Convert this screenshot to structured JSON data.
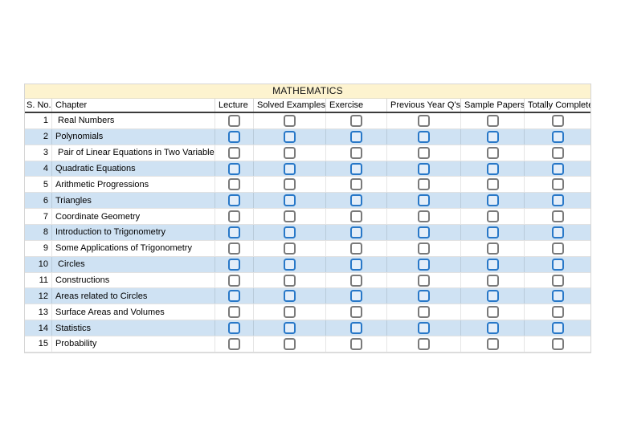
{
  "title": "MATHEMATICS",
  "columns": [
    "S. No.",
    "Chapter",
    "Lecture",
    "Solved Examples",
    "Exercise",
    "Previous Year Q's",
    "Sample Papers",
    "Totally Complete"
  ],
  "rows": [
    {
      "sno": "1",
      "chapter": " Real Numbers",
      "checks": [
        false,
        false,
        false,
        false,
        false,
        false
      ]
    },
    {
      "sno": "2",
      "chapter": "Polynomials",
      "checks": [
        false,
        false,
        false,
        false,
        false,
        false
      ]
    },
    {
      "sno": "3",
      "chapter": " Pair of Linear Equations in Two Variables",
      "checks": [
        false,
        false,
        false,
        false,
        false,
        false
      ]
    },
    {
      "sno": "4",
      "chapter": "Quadratic Equations",
      "checks": [
        false,
        false,
        false,
        false,
        false,
        false
      ]
    },
    {
      "sno": "5",
      "chapter": "Arithmetic Progressions",
      "checks": [
        false,
        false,
        false,
        false,
        false,
        false
      ]
    },
    {
      "sno": "6",
      "chapter": "Triangles",
      "checks": [
        false,
        false,
        false,
        false,
        false,
        false
      ]
    },
    {
      "sno": "7",
      "chapter": "Coordinate Geometry",
      "checks": [
        false,
        false,
        false,
        false,
        false,
        false
      ]
    },
    {
      "sno": "8",
      "chapter": "Introduction to Trigonometry",
      "checks": [
        false,
        false,
        false,
        false,
        false,
        false
      ]
    },
    {
      "sno": "9",
      "chapter": "Some Applications of Trigonometry",
      "checks": [
        false,
        false,
        false,
        false,
        false,
        false
      ]
    },
    {
      "sno": "10",
      "chapter": " Circles",
      "checks": [
        false,
        false,
        false,
        false,
        false,
        false
      ]
    },
    {
      "sno": "11",
      "chapter": "Constructions",
      "checks": [
        false,
        false,
        false,
        false,
        false,
        false
      ]
    },
    {
      "sno": "12",
      "chapter": "Areas related to Circles",
      "checks": [
        false,
        false,
        false,
        false,
        false,
        false
      ]
    },
    {
      "sno": "13",
      "chapter": "Surface Areas and Volumes",
      "checks": [
        false,
        false,
        false,
        false,
        false,
        false
      ]
    },
    {
      "sno": "14",
      "chapter": "Statistics",
      "checks": [
        false,
        false,
        false,
        false,
        false,
        false
      ]
    },
    {
      "sno": "15",
      "chapter": "Probability",
      "checks": [
        false,
        false,
        false,
        false,
        false,
        false
      ]
    }
  ],
  "colors": {
    "title_bg": "#FDF3CF",
    "alt_row_bg": "#CFE2F3",
    "checkbox_gray_border": "#7A7A7A",
    "checkbox_blue_border": "#2878C8",
    "checkbox_blue_fill": "#E4EEF9",
    "header_underline": "#3B3B3B",
    "gridline": "#D6D6D6"
  }
}
